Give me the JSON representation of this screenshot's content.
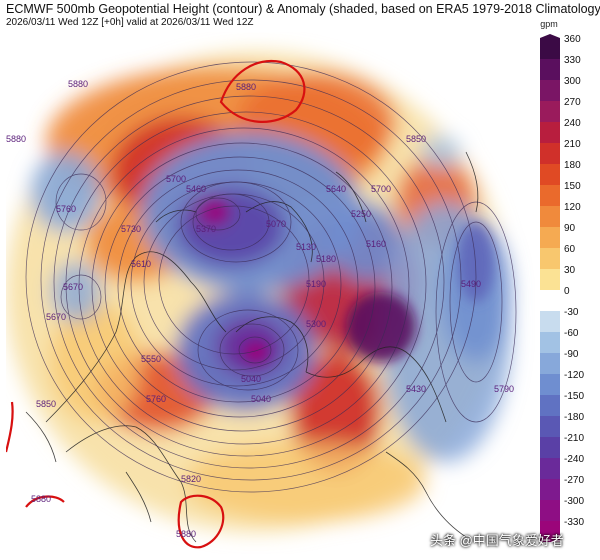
{
  "header": {
    "title": "ECMWF 500mb Geopotential Height (contour) & Anomaly (shaded, based on ERA5 1979-2018 Climatology)",
    "subtitle": "2026/03/11 Wed 12Z [+0h] valid at 2026/03/11 Wed 12Z"
  },
  "colorbar": {
    "units": "gpm",
    "ticks": [
      360,
      330,
      300,
      270,
      240,
      210,
      180,
      150,
      120,
      90,
      60,
      30,
      0,
      -30,
      -60,
      -90,
      -120,
      -150,
      -180,
      -210,
      -240,
      -270,
      -300,
      -330
    ],
    "colors": [
      "#3b0a45",
      "#5a0f5e",
      "#7a1565",
      "#9a1b5c",
      "#b81e3e",
      "#d0302a",
      "#e04a24",
      "#ea6a2c",
      "#f08a3c",
      "#f5aa52",
      "#f8c76e",
      "#fbe294",
      "#ffffff",
      "#c8dcee",
      "#a2c2e4",
      "#87a8da",
      "#6f8ed0",
      "#6072c2",
      "#5a58b4",
      "#5a40a6",
      "#6a2a9a",
      "#7e1a8e",
      "#8e0e84",
      "#9b057a"
    ]
  },
  "contour_labels": [
    "5880",
    "5880",
    "5850",
    "5880",
    "5760",
    "5670",
    "5730",
    "5700",
    "5610",
    "5670",
    "5550",
    "5460",
    "5370",
    "5070",
    "5130",
    "5040",
    "5250",
    "5160",
    "5190",
    "5640",
    "5700",
    "5490",
    "5790",
    "5430",
    "5820",
    "5880",
    "5850",
    "5880",
    "5760",
    "5040",
    "5300",
    "5180"
  ],
  "watermark": "头条 @中国气象爱好者",
  "colors": {
    "ridge": "#d0302a",
    "trough": "#5a40a6",
    "contour": "#3a2a55",
    "coastline": "#222222",
    "contour_5880": "#d81010"
  }
}
